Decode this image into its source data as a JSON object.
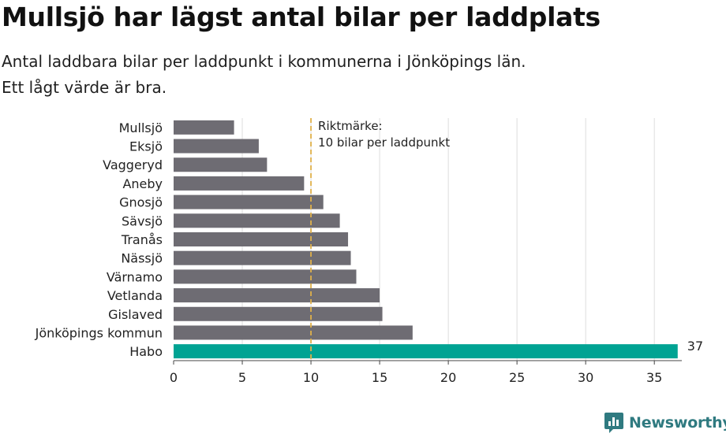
{
  "chart_data": {
    "type": "bar",
    "orientation": "horizontal",
    "title": "Mullsjö har lägst antal bilar per laddplats",
    "subtitle_lines": [
      "Antal laddbara bilar per laddpunkt i kommunerna i Jönköpings län.",
      "Ett lågt värde är bra."
    ],
    "categories": [
      "Mullsjö",
      "Eksjö",
      "Vaggeryd",
      "Aneby",
      "Gnosjö",
      "Sävsjö",
      "Tranås",
      "Nässjö",
      "Värnamo",
      "Vetlanda",
      "Gislaved",
      "Jönköpings kommun",
      "Habo"
    ],
    "values": [
      4.4,
      6.2,
      6.8,
      9.5,
      10.9,
      12.1,
      12.7,
      12.9,
      13.3,
      15.0,
      15.2,
      17.4,
      36.7
    ],
    "highlight_index": 12,
    "highlight_label": "37",
    "xlim": [
      0,
      37
    ],
    "xticks": [
      0,
      5,
      10,
      15,
      20,
      25,
      30,
      35
    ],
    "grid": true,
    "reference_line": {
      "value": 10,
      "label_lines": [
        "Riktmärke:",
        "10 bilar per laddpunkt"
      ]
    },
    "colors": {
      "bar": "#6e6c73",
      "highlight": "#00a393",
      "reference": "#e0b04a",
      "grid": "#dddddd",
      "axis": "#444444"
    }
  },
  "brand": {
    "name": "Newsworthy",
    "logo_icon": "bar-chart-badge-icon"
  }
}
